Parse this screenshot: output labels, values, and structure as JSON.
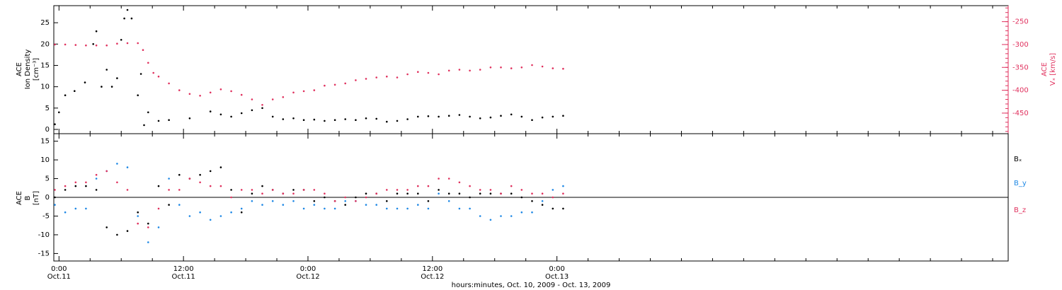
{
  "colors": {
    "black": "#000000",
    "blue": "#1e88e5",
    "red": "#e0315e"
  },
  "x_axis": {
    "title": "hours:minutes, Oct. 10, 2009 - Oct. 13, 2009",
    "xlim_hours": [
      -0.5,
      91.5
    ],
    "ticks": [
      {
        "hour": 0,
        "time": "0:00",
        "date": "Oct.11"
      },
      {
        "hour": 12,
        "time": "12:00",
        "date": "Oct.11"
      },
      {
        "hour": 24,
        "time": "0:00",
        "date": "Oct.12"
      },
      {
        "hour": 36,
        "time": "12:00",
        "date": "Oct.12"
      },
      {
        "hour": 48,
        "time": "0:00",
        "date": "Oct.13"
      }
    ]
  },
  "chart_data": [
    {
      "type": "scatter",
      "panel": "top",
      "ylabel": [
        "ACE",
        "Ion Density",
        "[cm⁻³]"
      ],
      "ylim": [
        -1,
        29
      ],
      "yticks": [
        0,
        5,
        10,
        15,
        20,
        25
      ],
      "y2label": [
        "ACE",
        "Vₓ [km/s]"
      ],
      "y2lim": [
        -495,
        -215
      ],
      "y2ticks": [
        -450,
        -400,
        -350,
        -300,
        -250
      ],
      "series": [
        {
          "color": "black",
          "axis": "left",
          "points": [
            [
              -0.4,
              1.2
            ],
            [
              0,
              4
            ],
            [
              0.6,
              8
            ],
            [
              1.5,
              9
            ],
            [
              2.5,
              11
            ],
            [
              3.3,
              20
            ],
            [
              3.6,
              23
            ],
            [
              4.1,
              10
            ],
            [
              4.6,
              14
            ],
            [
              5.1,
              10
            ],
            [
              5.6,
              12
            ],
            [
              6,
              21
            ],
            [
              6.3,
              26
            ],
            [
              6.6,
              28
            ],
            [
              7,
              26
            ],
            [
              7.6,
              8
            ],
            [
              7.9,
              13
            ],
            [
              8.2,
              1
            ],
            [
              8.6,
              4
            ],
            [
              9.6,
              2
            ],
            [
              10.6,
              2.2
            ],
            [
              12.6,
              2.6
            ],
            [
              14.6,
              4.2
            ],
            [
              15.6,
              3.5
            ],
            [
              16.6,
              3
            ],
            [
              17.6,
              3.8
            ],
            [
              18.6,
              4.5
            ],
            [
              19.6,
              5
            ],
            [
              20.6,
              3
            ],
            [
              21.6,
              2.4
            ],
            [
              22.6,
              2.6
            ],
            [
              23.6,
              2.2
            ],
            [
              24.6,
              2.3
            ],
            [
              25.6,
              2
            ],
            [
              26.6,
              2.2
            ],
            [
              27.6,
              2.4
            ],
            [
              28.6,
              2.2
            ],
            [
              29.6,
              2.6
            ],
            [
              30.6,
              2.5
            ],
            [
              31.6,
              1.8
            ],
            [
              32.6,
              2
            ],
            [
              33.6,
              2.4
            ],
            [
              34.6,
              3
            ],
            [
              35.6,
              3.1
            ],
            [
              36.6,
              3
            ],
            [
              37.6,
              3.2
            ],
            [
              38.6,
              3.4
            ],
            [
              39.6,
              3
            ],
            [
              40.6,
              2.6
            ],
            [
              41.6,
              2.8
            ],
            [
              42.6,
              3.2
            ],
            [
              43.6,
              3.5
            ],
            [
              44.6,
              3
            ],
            [
              45.6,
              2.2
            ],
            [
              46.6,
              2.8
            ],
            [
              47.6,
              3
            ],
            [
              48.6,
              3.2
            ]
          ]
        },
        {
          "color": "red",
          "axis": "right",
          "points": [
            [
              -0.4,
              -300
            ],
            [
              0.6,
              -300
            ],
            [
              1.6,
              -301
            ],
            [
              2.6,
              -302
            ],
            [
              3.6,
              -302
            ],
            [
              4.6,
              -302
            ],
            [
              5.6,
              -298
            ],
            [
              6.6,
              -297
            ],
            [
              7.6,
              -297
            ],
            [
              8.1,
              -312
            ],
            [
              8.6,
              -340
            ],
            [
              9.1,
              -362
            ],
            [
              9.6,
              -370
            ],
            [
              10.6,
              -385
            ],
            [
              11.6,
              -400
            ],
            [
              12.6,
              -408
            ],
            [
              13.6,
              -412
            ],
            [
              14.6,
              -405
            ],
            [
              15.6,
              -398
            ],
            [
              16.6,
              -402
            ],
            [
              17.6,
              -410
            ],
            [
              18.6,
              -420
            ],
            [
              19.6,
              -432
            ],
            [
              20.6,
              -420
            ],
            [
              21.6,
              -415
            ],
            [
              22.6,
              -405
            ],
            [
              23.6,
              -402
            ],
            [
              24.6,
              -400
            ],
            [
              25.6,
              -390
            ],
            [
              26.6,
              -388
            ],
            [
              27.6,
              -385
            ],
            [
              28.6,
              -378
            ],
            [
              29.6,
              -375
            ],
            [
              30.6,
              -372
            ],
            [
              31.6,
              -370
            ],
            [
              32.6,
              -372
            ],
            [
              33.6,
              -365
            ],
            [
              34.6,
              -360
            ],
            [
              35.6,
              -362
            ],
            [
              36.6,
              -365
            ],
            [
              37.6,
              -357
            ],
            [
              38.6,
              -355
            ],
            [
              39.6,
              -357
            ],
            [
              40.6,
              -355
            ],
            [
              41.6,
              -350
            ],
            [
              42.6,
              -350
            ],
            [
              43.6,
              -352
            ],
            [
              44.6,
              -350
            ],
            [
              45.6,
              -345
            ],
            [
              46.6,
              -348
            ],
            [
              47.6,
              -352
            ],
            [
              48.6,
              -353
            ]
          ]
        }
      ]
    },
    {
      "type": "scatter",
      "panel": "bottom",
      "ylabel": [
        "ACE",
        "B",
        "[nT]"
      ],
      "ylim": [
        -17,
        17
      ],
      "yticks": [
        -15,
        -10,
        -5,
        0,
        5,
        10,
        15
      ],
      "zero_line": true,
      "series": [
        {
          "name": "Bₓ",
          "color": "black",
          "points": [
            [
              -0.4,
              0
            ],
            [
              0.6,
              2
            ],
            [
              1.6,
              3
            ],
            [
              2.6,
              3
            ],
            [
              3.6,
              2
            ],
            [
              4.6,
              -8
            ],
            [
              5.6,
              -10
            ],
            [
              6.6,
              -9
            ],
            [
              7.6,
              -4
            ],
            [
              8.6,
              -7
            ],
            [
              9.6,
              3
            ],
            [
              10.6,
              -2
            ],
            [
              11.6,
              6
            ],
            [
              12.6,
              5
            ],
            [
              13.6,
              6
            ],
            [
              14.6,
              7
            ],
            [
              15.6,
              8
            ],
            [
              16.6,
              2
            ],
            [
              17.6,
              -4
            ],
            [
              18.6,
              1
            ],
            [
              19.6,
              3
            ],
            [
              20.6,
              2
            ],
            [
              21.6,
              1
            ],
            [
              22.6,
              2
            ],
            [
              23.6,
              2
            ],
            [
              24.6,
              -1
            ],
            [
              25.6,
              0
            ],
            [
              26.6,
              -1
            ],
            [
              27.6,
              -2
            ],
            [
              28.6,
              0
            ],
            [
              29.6,
              1
            ],
            [
              30.6,
              1
            ],
            [
              31.6,
              -1
            ],
            [
              32.6,
              1
            ],
            [
              33.6,
              1
            ],
            [
              34.6,
              1
            ],
            [
              35.6,
              -1
            ],
            [
              36.6,
              2
            ],
            [
              37.6,
              1
            ],
            [
              38.6,
              1
            ],
            [
              39.6,
              0
            ],
            [
              40.6,
              1
            ],
            [
              41.6,
              1
            ],
            [
              42.6,
              1
            ],
            [
              43.6,
              1
            ],
            [
              44.6,
              0
            ],
            [
              45.6,
              -1
            ],
            [
              46.6,
              -2
            ],
            [
              47.6,
              -3
            ],
            [
              48.6,
              -3
            ]
          ]
        },
        {
          "name": "B_y",
          "color": "blue",
          "points": [
            [
              -0.4,
              -2
            ],
            [
              0.6,
              -4
            ],
            [
              1.6,
              -3
            ],
            [
              2.6,
              -3
            ],
            [
              3.6,
              5
            ],
            [
              4.6,
              7
            ],
            [
              5.6,
              9
            ],
            [
              6.6,
              8
            ],
            [
              7.6,
              -5
            ],
            [
              8.6,
              -12
            ],
            [
              9.6,
              -8
            ],
            [
              10.6,
              5
            ],
            [
              11.6,
              -2
            ],
            [
              12.6,
              -5
            ],
            [
              13.6,
              -4
            ],
            [
              14.6,
              -6
            ],
            [
              15.6,
              -5
            ],
            [
              16.6,
              -4
            ],
            [
              17.6,
              -3
            ],
            [
              18.6,
              -1
            ],
            [
              19.6,
              -2
            ],
            [
              20.6,
              -1
            ],
            [
              21.6,
              -2
            ],
            [
              22.6,
              -1
            ],
            [
              23.6,
              -3
            ],
            [
              24.6,
              -2
            ],
            [
              25.6,
              -3
            ],
            [
              26.6,
              -3
            ],
            [
              27.6,
              -1
            ],
            [
              28.6,
              -1
            ],
            [
              29.6,
              -2
            ],
            [
              30.6,
              -2
            ],
            [
              31.6,
              -3
            ],
            [
              32.6,
              -3
            ],
            [
              33.6,
              -3
            ],
            [
              34.6,
              -2
            ],
            [
              35.6,
              -3
            ],
            [
              36.6,
              1
            ],
            [
              37.6,
              -1
            ],
            [
              38.6,
              -3
            ],
            [
              39.6,
              -3
            ],
            [
              40.6,
              -5
            ],
            [
              41.6,
              -6
            ],
            [
              42.6,
              -5
            ],
            [
              43.6,
              -5
            ],
            [
              44.6,
              -4
            ],
            [
              45.6,
              -4
            ],
            [
              46.6,
              -1
            ],
            [
              47.6,
              2
            ],
            [
              48.6,
              3
            ]
          ]
        },
        {
          "name": "B_z",
          "color": "red",
          "points": [
            [
              -0.4,
              2
            ],
            [
              0.6,
              3
            ],
            [
              1.6,
              4
            ],
            [
              2.6,
              4
            ],
            [
              3.6,
              6
            ],
            [
              4.6,
              7
            ],
            [
              5.6,
              4
            ],
            [
              6.6,
              2
            ],
            [
              7.6,
              -7
            ],
            [
              8.6,
              -8
            ],
            [
              9.6,
              -3
            ],
            [
              10.6,
              2
            ],
            [
              11.6,
              2
            ],
            [
              12.6,
              5
            ],
            [
              13.6,
              4
            ],
            [
              14.6,
              3
            ],
            [
              15.6,
              3
            ],
            [
              16.6,
              0
            ],
            [
              17.6,
              2
            ],
            [
              18.6,
              2
            ],
            [
              19.6,
              1
            ],
            [
              20.6,
              2
            ],
            [
              21.6,
              1
            ],
            [
              22.6,
              1
            ],
            [
              23.6,
              2
            ],
            [
              24.6,
              2
            ],
            [
              25.6,
              1
            ],
            [
              26.6,
              -1
            ],
            [
              27.6,
              0
            ],
            [
              28.6,
              -1
            ],
            [
              29.6,
              0
            ],
            [
              30.6,
              1
            ],
            [
              31.6,
              2
            ],
            [
              32.6,
              2
            ],
            [
              33.6,
              2
            ],
            [
              34.6,
              3
            ],
            [
              35.6,
              3
            ],
            [
              36.6,
              5
            ],
            [
              37.6,
              5
            ],
            [
              38.6,
              4
            ],
            [
              39.6,
              3
            ],
            [
              40.6,
              2
            ],
            [
              41.6,
              2
            ],
            [
              42.6,
              1
            ],
            [
              43.6,
              3
            ],
            [
              44.6,
              2
            ],
            [
              45.6,
              1
            ],
            [
              46.6,
              1
            ],
            [
              47.6,
              0
            ],
            [
              48.6,
              1
            ]
          ]
        }
      ]
    }
  ]
}
